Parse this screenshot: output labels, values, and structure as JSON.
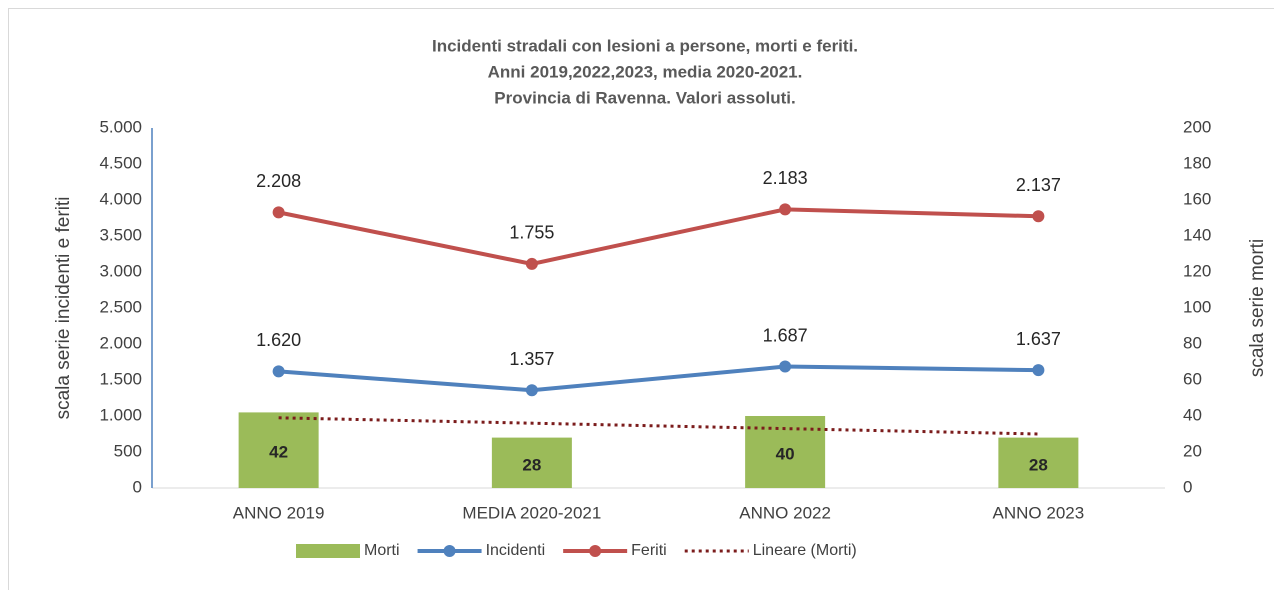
{
  "chart_data": {
    "type": "combo",
    "title": [
      "Incidenti stradali con lesioni a persone, morti e feriti.",
      "Anni 2019,2022,2023, media 2020-2021.",
      "Provincia di Ravenna. Valori assoluti."
    ],
    "categories": [
      "ANNO 2019",
      "MEDIA 2020-2021",
      "ANNO 2022",
      "ANNO 2023"
    ],
    "y_label": "scala serie incidenti e feriti",
    "y2_label": "scala serie morti",
    "stacked": true,
    "series": [
      {
        "name": "Morti",
        "type": "bar",
        "axis": "y2",
        "color": "#9bbb59",
        "values": [
          42,
          28,
          40,
          28
        ]
      },
      {
        "name": "Incidenti",
        "type": "line",
        "color": "#4f81bd",
        "values": [
          1620,
          1357,
          1687,
          1637
        ],
        "value_labels": [
          "1.620",
          "1.357",
          "1.687",
          "1.637"
        ]
      },
      {
        "name": "Feriti",
        "type": "line",
        "color": "#c0504d",
        "values": [
          2208,
          1755,
          2183,
          2137
        ],
        "value_labels": [
          "2.208",
          "1.755",
          "2.183",
          "2.137"
        ]
      }
    ],
    "trendline": {
      "name": "Lineare (Morti)",
      "of": 0,
      "color": "#7b1c1c"
    },
    "ylim": [
      0,
      5000
    ],
    "yticks": [
      {
        "value": 0,
        "label": "0"
      },
      {
        "value": 500,
        "label": "500"
      },
      {
        "value": 1000,
        "label": "1.000"
      },
      {
        "value": 1500,
        "label": "1.500"
      },
      {
        "value": 2000,
        "label": "2.000"
      },
      {
        "value": 2500,
        "label": "2.500"
      },
      {
        "value": 3000,
        "label": "3.000"
      },
      {
        "value": 3500,
        "label": "3.500"
      },
      {
        "value": 4000,
        "label": "4.000"
      },
      {
        "value": 4500,
        "label": "4.500"
      },
      {
        "value": 5000,
        "label": "5.000"
      }
    ],
    "y2lim": [
      0,
      200
    ],
    "y2ticks": [
      0,
      20,
      40,
      60,
      80,
      100,
      120,
      140,
      160,
      180,
      200
    ],
    "legend": "bottom"
  }
}
